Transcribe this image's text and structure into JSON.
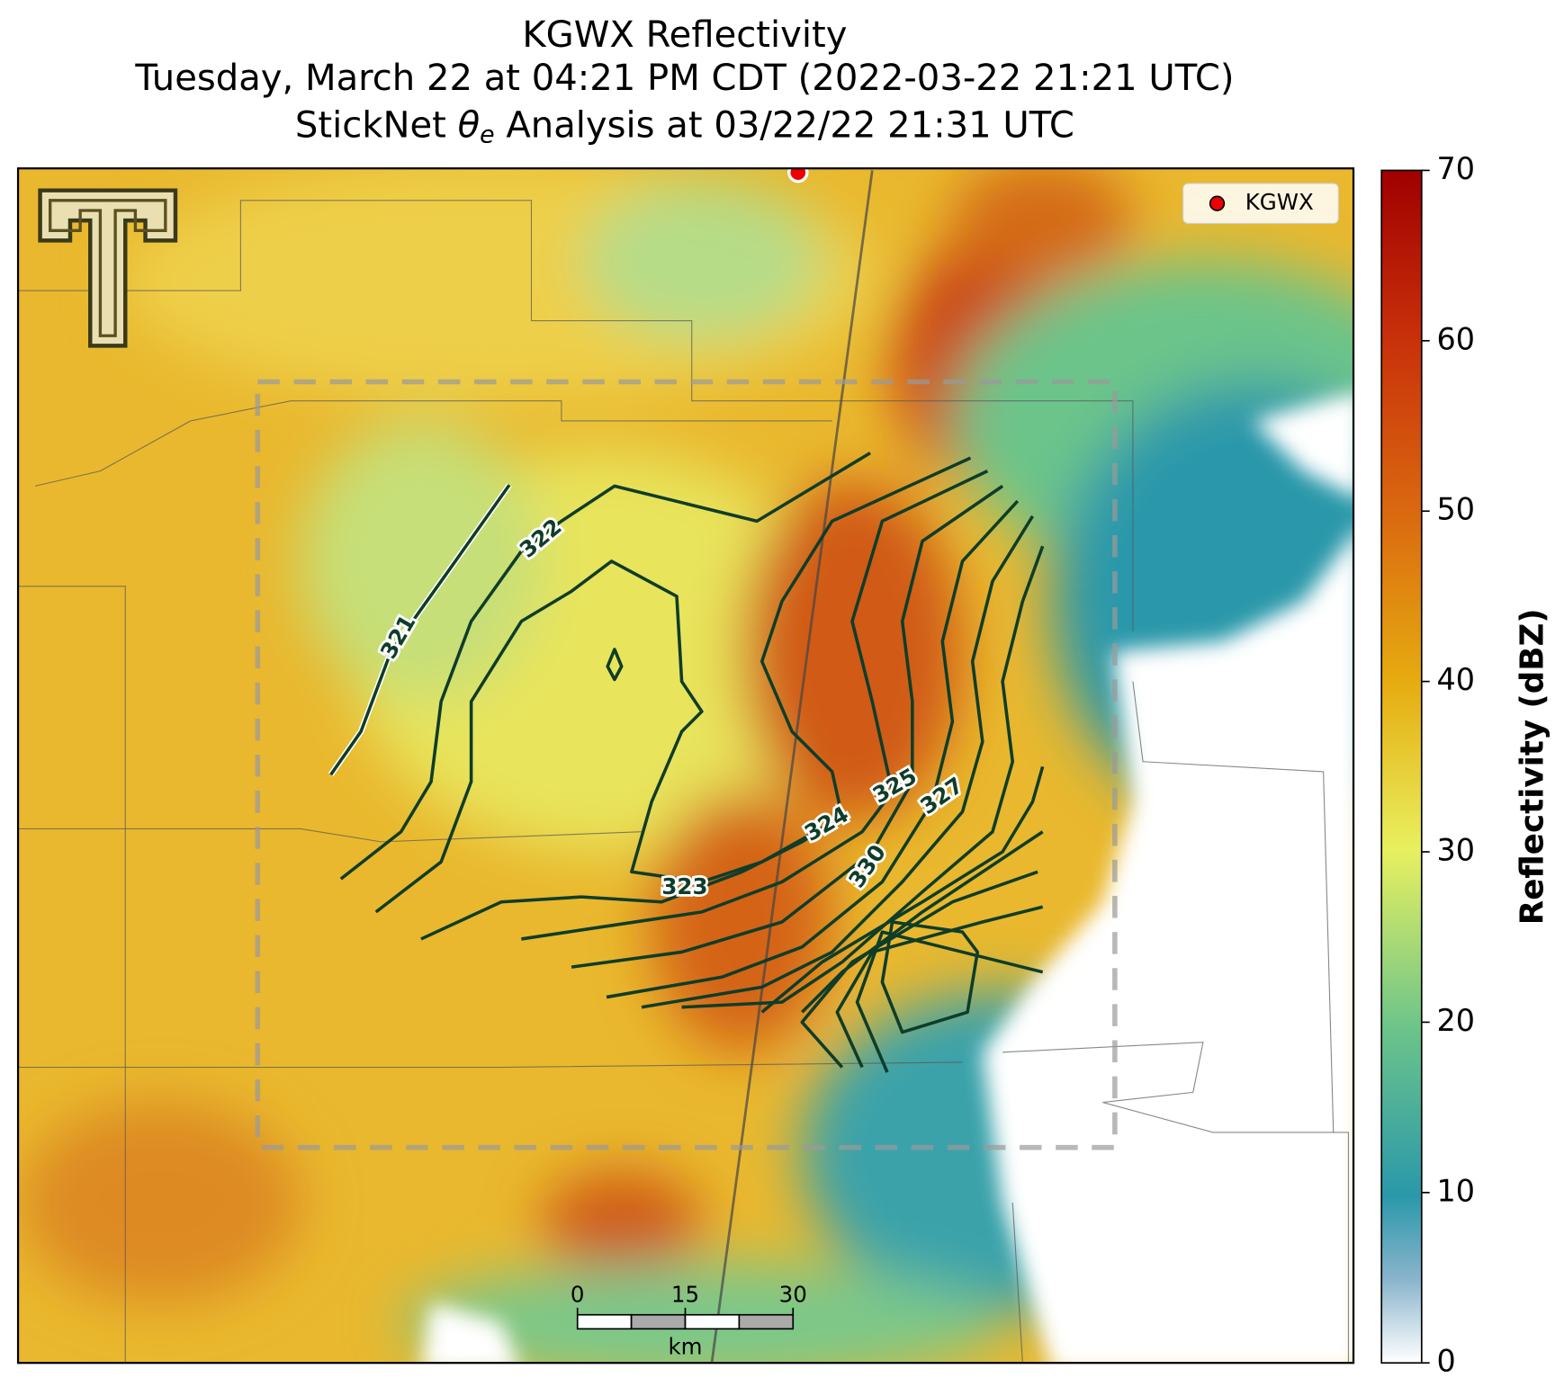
{
  "header": {
    "title": "KGWX Reflectivity",
    "subtitle": "Tuesday, March 22 at 04:21 PM CDT (2022-03-22 21:21 UTC)",
    "analysis": {
      "before": "StickNet ",
      "symbol": "θ",
      "subscript": "e",
      "after": " Analysis at 03/22/22 21:31 UTC"
    }
  },
  "legend": {
    "label": "KGWX"
  },
  "contour_labels": [
    321,
    322,
    323,
    324,
    325,
    327,
    330
  ],
  "scale_bar": {
    "ticks": [
      0,
      15,
      30
    ],
    "unit": "km"
  },
  "colorbar": {
    "label": "Reflectivity (dBZ)",
    "lim": [
      0,
      70
    ],
    "ticks": [
      0,
      10,
      20,
      30,
      40,
      50,
      60,
      70
    ]
  }
}
